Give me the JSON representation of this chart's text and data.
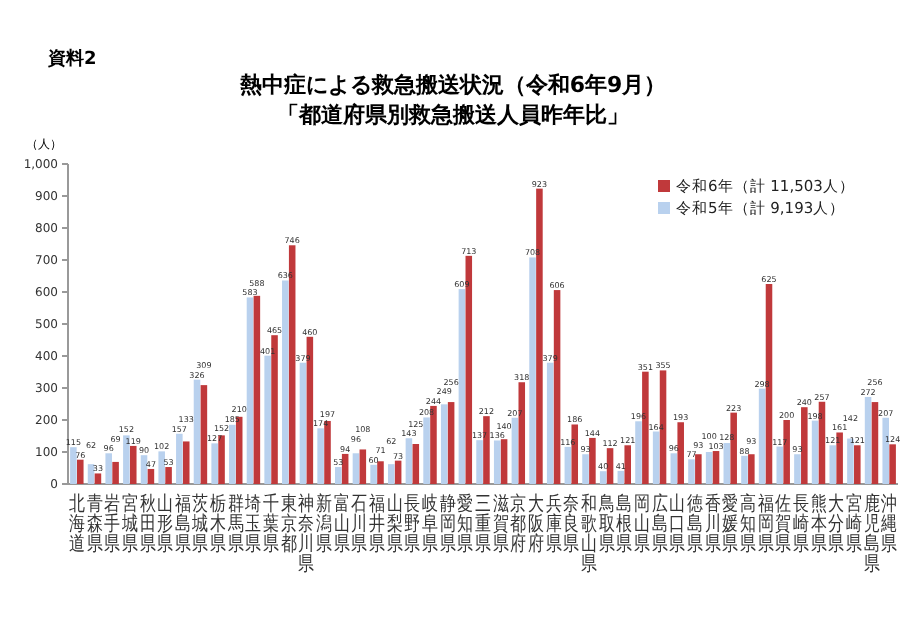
{
  "chart_data": {
    "type": "bar",
    "title": "熱中症による救急搬送状況（令和6年9月）",
    "subtitle": "「都道府県別救急搬送人員昨年比」",
    "ylabel": "（人）",
    "annotations": [
      "資料2"
    ],
    "categories": [
      "北海道",
      "青森県",
      "岩手県",
      "宮城県",
      "秋田県",
      "山形県",
      "福島県",
      "茨城県",
      "栃木県",
      "群馬県",
      "埼玉県",
      "千葉県",
      "東京都",
      "神奈川県",
      "新潟県",
      "富山県",
      "石川県",
      "福井県",
      "山梨県",
      "長野県",
      "岐阜県",
      "静岡県",
      "愛知県",
      "三重県",
      "滋賀県",
      "京都府",
      "大阪府",
      "兵庫県",
      "奈良県",
      "和歌山県",
      "鳥取県",
      "島根県",
      "岡山県",
      "広島県",
      "山口県",
      "徳島県",
      "香川県",
      "愛媛県",
      "高知県",
      "福岡県",
      "佐賀県",
      "長崎県",
      "熊本県",
      "大分県",
      "宮崎県",
      "鹿児島県",
      "沖縄県"
    ],
    "series": [
      {
        "name": "令和5年（計 9,193人）",
        "color": "#b9d1ee",
        "values": [
          115,
          62,
          96,
          152,
          90,
          102,
          157,
          326,
          127,
          185,
          583,
          401,
          636,
          379,
          174,
          53,
          96,
          60,
          62,
          143,
          208,
          249,
          609,
          137,
          136,
          207,
          708,
          379,
          116,
          93,
          40,
          41,
          196,
          164,
          96,
          77,
          100,
          128,
          88,
          298,
          117,
          93,
          198,
          121,
          142,
          272,
          207
        ]
      },
      {
        "name": "令和6年（計 11,503人）",
        "color": "#c0393b",
        "values": [
          76,
          33,
          69,
          119,
          47,
          53,
          133,
          309,
          152,
          210,
          588,
          465,
          746,
          460,
          197,
          94,
          108,
          71,
          73,
          125,
          244,
          256,
          713,
          212,
          140,
          318,
          923,
          606,
          186,
          144,
          112,
          121,
          351,
          355,
          193,
          93,
          103,
          223,
          93,
          625,
          200,
          240,
          257,
          161,
          121,
          256,
          124
        ]
      }
    ],
    "ylim": [
      0,
      1000
    ],
    "yticks": [
      0,
      100,
      200,
      300,
      400,
      500,
      600,
      700,
      800,
      900,
      {
        "value": 1000,
        "label": "1,000"
      }
    ],
    "data_labels": true,
    "legend": "top right",
    "grid": false
  }
}
